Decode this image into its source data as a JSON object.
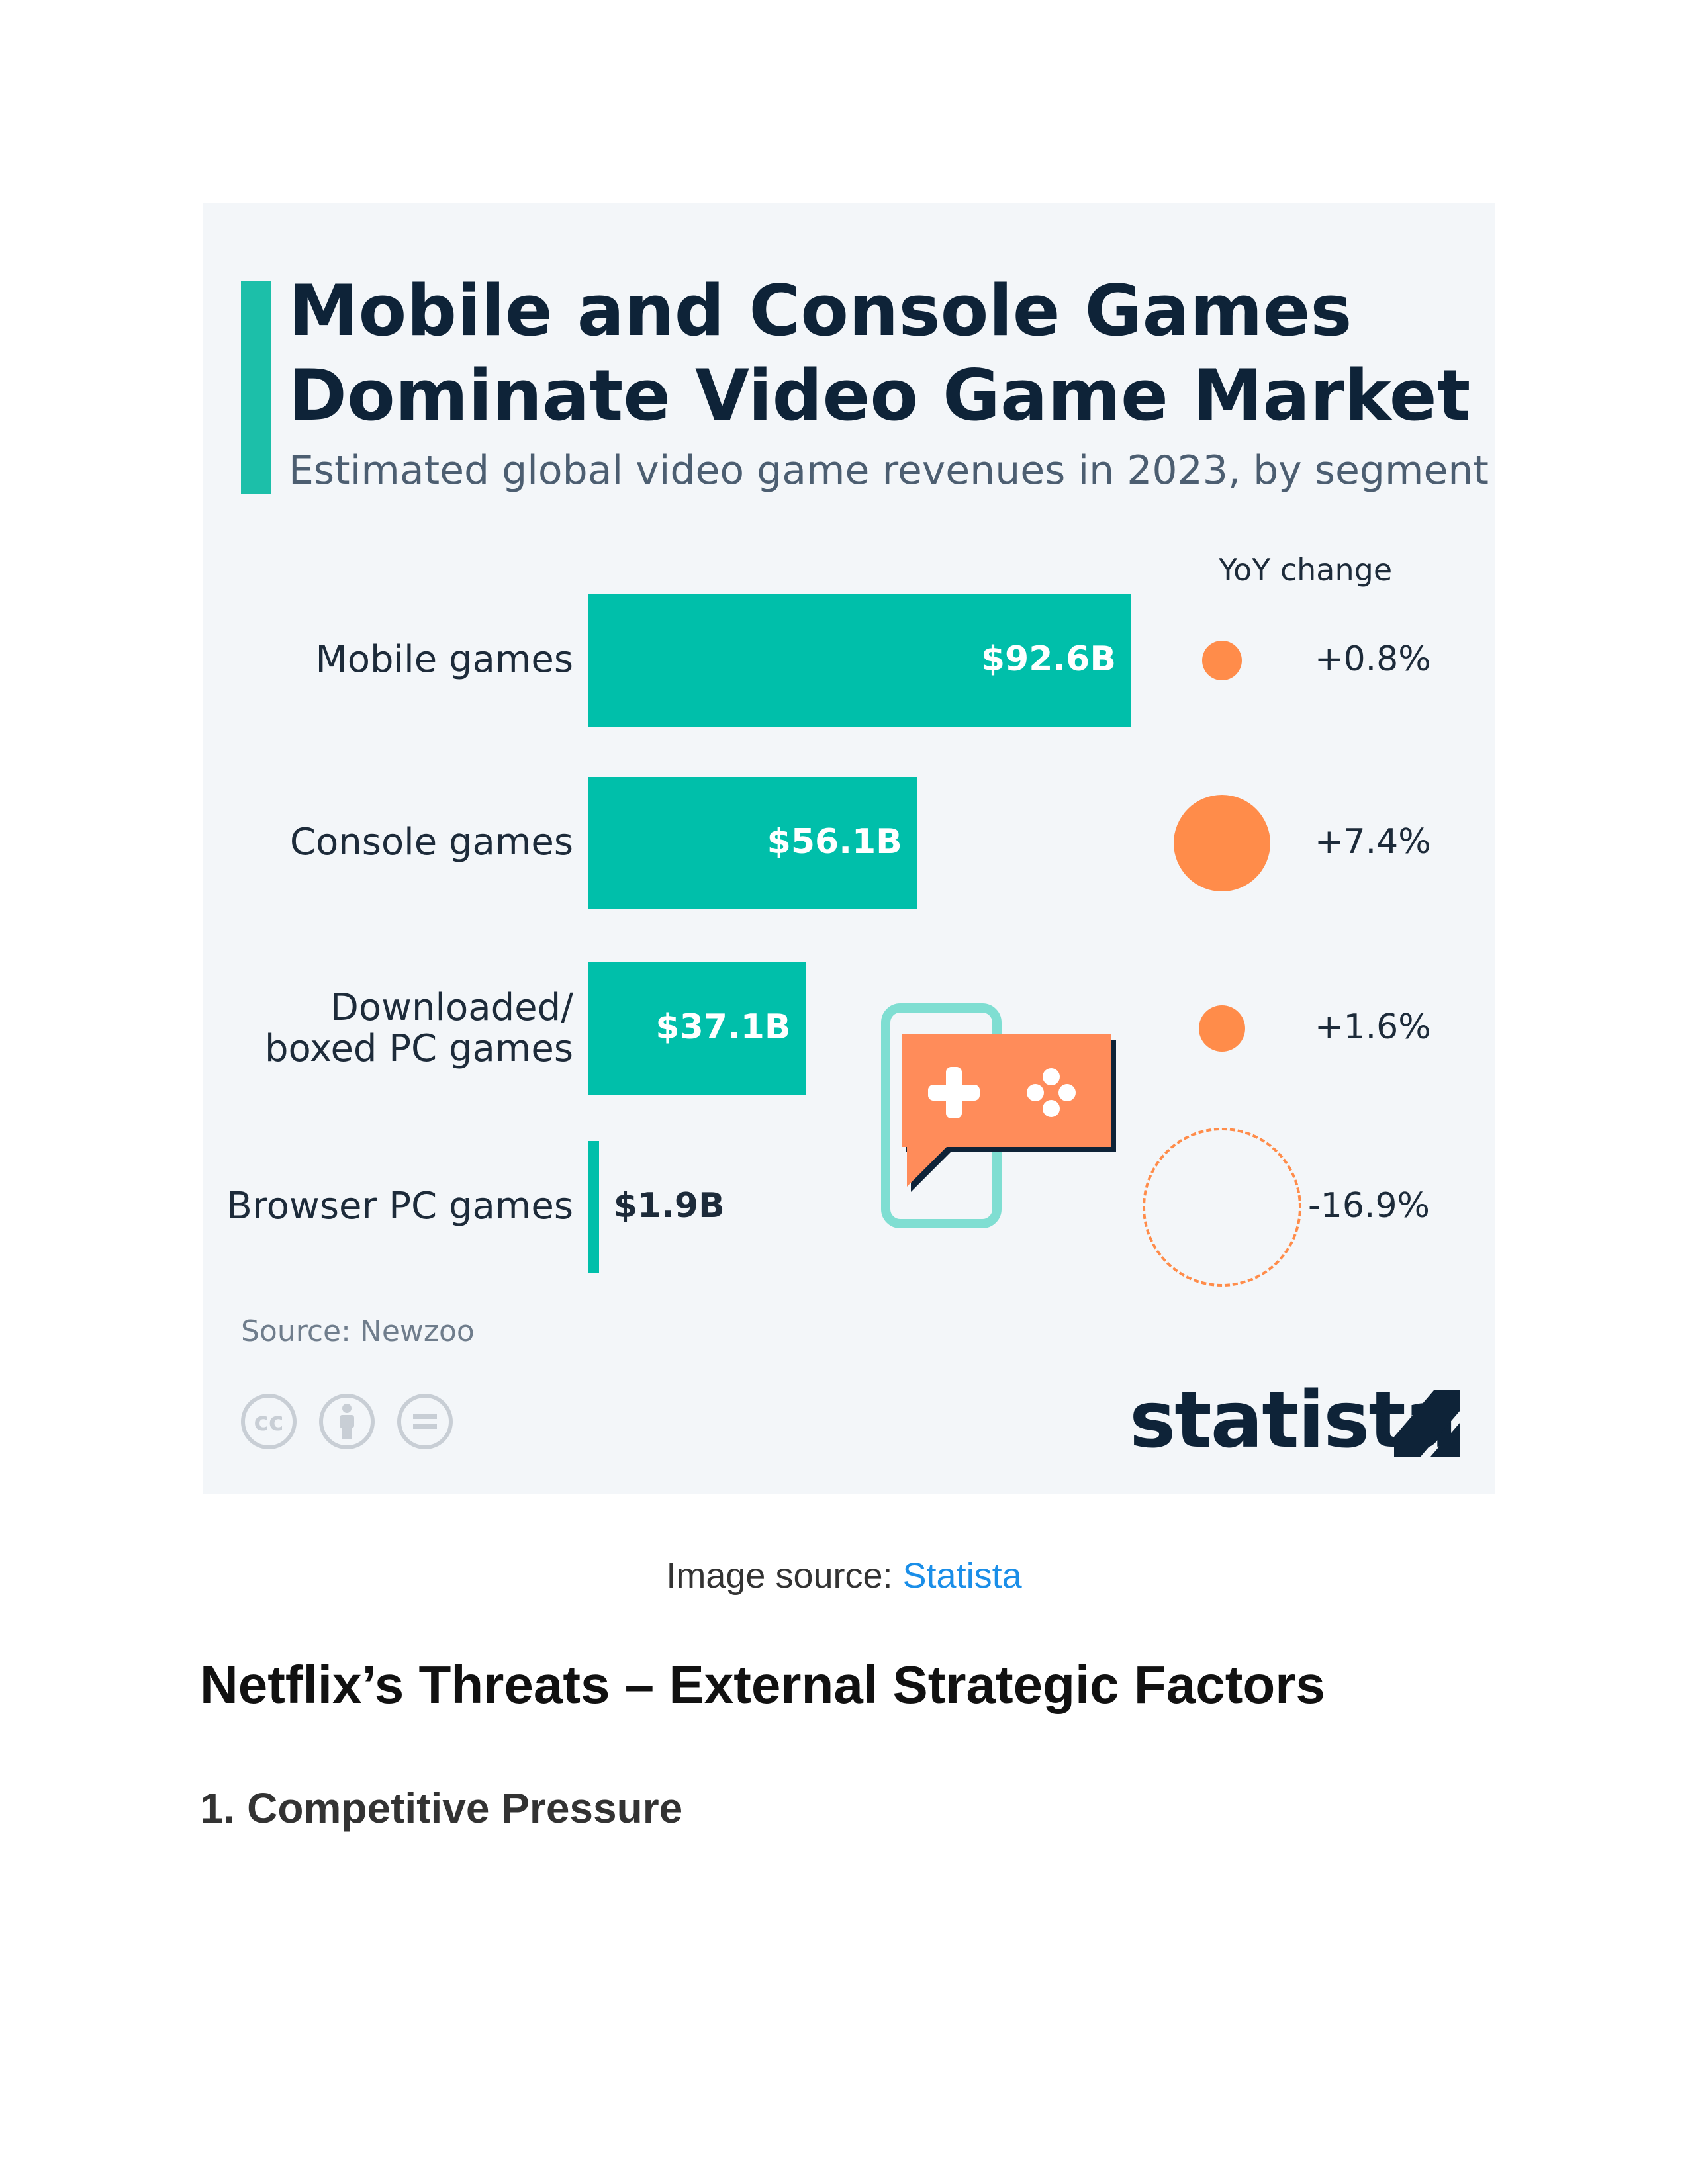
{
  "infographic": {
    "title": "Mobile and Console Games Dominate Video Game Market",
    "subtitle": "Estimated global video game revenues in 2023, by segment",
    "yoy_header": "YoY change",
    "source": "Source: Newzoo",
    "brand": "statista",
    "license_icons": [
      "cc-icon",
      "attribution-icon",
      "no-derivatives-icon"
    ],
    "colors": {
      "bar": "#00bfaa",
      "dot": "#ff8c4a",
      "title": "#0e2338",
      "accent": "#1cbfa9"
    }
  },
  "chart_data": {
    "type": "bar",
    "orientation": "horizontal",
    "title": "Mobile and Console Games Dominate Video Game Market",
    "subtitle": "Estimated global video game revenues in 2023, by segment",
    "categories": [
      "Mobile games",
      "Console games",
      "Downloaded/ boxed PC games",
      "Browser PC games"
    ],
    "values": [
      92.6,
      56.1,
      37.1,
      1.9
    ],
    "value_labels": [
      "$92.6B",
      "$56.1B",
      "$37.1B",
      "$1.9B"
    ],
    "yoy_change": [
      0.8,
      7.4,
      1.6,
      -16.9
    ],
    "yoy_labels": [
      "+0.8%",
      "+7.4%",
      "+1.6%",
      "-16.9%"
    ],
    "unit": "USD billions",
    "source": "Source: Newzoo"
  },
  "caption": {
    "prefix": "Image source: ",
    "link": "Statista"
  },
  "heading": "Netflix’s Threats – External Strategic Factors",
  "subheading": "1. Competitive Pressure"
}
